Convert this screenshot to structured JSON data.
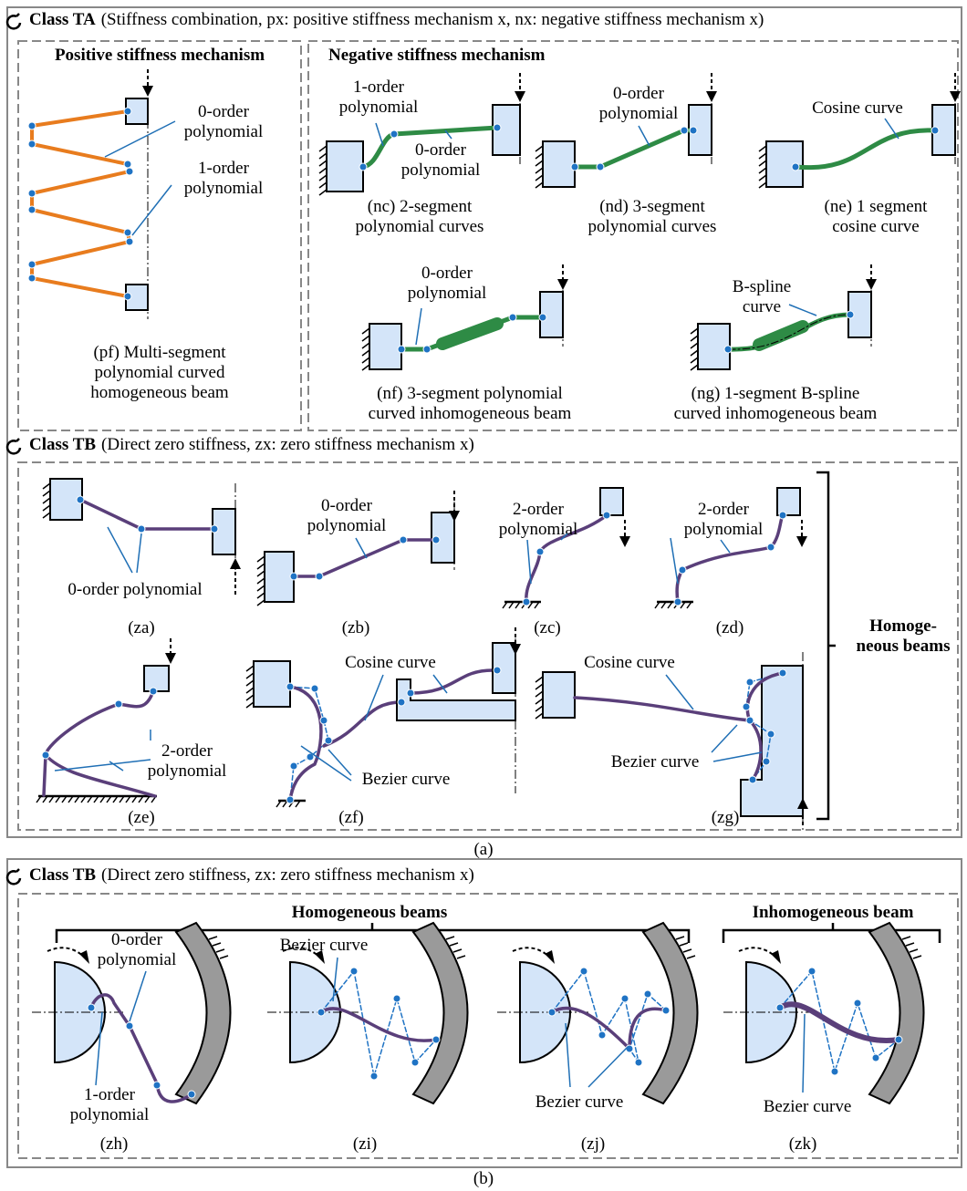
{
  "figure_a": {
    "class_ta": {
      "label": "Class TA",
      "description": "(Stiffness combination, px: positive stiffness mechanism x, nx: negative stiffness mechanism x)"
    },
    "positive": {
      "title": "Positive stiffness mechanism",
      "labels": [
        [
          "0-order",
          "polynomial"
        ],
        [
          "1-order",
          "polynomial"
        ]
      ],
      "caption": [
        "(pf) Multi-segment",
        "polynomial curved",
        "homogeneous beam"
      ]
    },
    "negative": {
      "title": "Negative stiffness mechanism",
      "items": [
        {
          "labels": [
            [
              "1-order",
              "polynomial"
            ],
            [
              "0-order",
              "polynomial"
            ]
          ],
          "caption": [
            "(nc) 2-segment",
            "polynomial curves"
          ]
        },
        {
          "labels": [
            [
              "0-order",
              "polynomial"
            ]
          ],
          "caption": [
            "(nd)  3-segment",
            "polynomial curves"
          ]
        },
        {
          "labels": [
            [
              "Cosine curve"
            ]
          ],
          "caption": [
            "(ne) 1 segment",
            "cosine curve"
          ]
        },
        {
          "labels": [
            [
              "0-order",
              "polynomial"
            ]
          ],
          "caption": [
            "(nf) 3-segment polynomial",
            "curved inhomogeneous beam"
          ]
        },
        {
          "labels": [
            [
              "B-spline",
              "curve"
            ]
          ],
          "caption": [
            "(ng) 1-segment B-spline",
            "curved inhomogeneous beam"
          ]
        }
      ]
    },
    "class_tb": {
      "label": "Class TB",
      "description": "(Direct zero stiffness, zx: zero stiffness mechanism x)"
    },
    "zero": {
      "items": [
        {
          "labels": [
            [
              "0-order polynomial"
            ]
          ],
          "caption": "(za)"
        },
        {
          "labels": [
            [
              "0-order",
              "polynomial"
            ]
          ],
          "caption": "(zb)"
        },
        {
          "labels": [
            [
              "2-order",
              "polynomial"
            ]
          ],
          "caption": "(zc)"
        },
        {
          "labels": [
            [
              "2-order",
              "polynomial"
            ]
          ],
          "caption": "(zd)"
        },
        {
          "labels": [
            [
              "2-order",
              "polynomial"
            ]
          ],
          "caption": "(ze)"
        },
        {
          "labels": [
            [
              "Cosine curve"
            ],
            [
              "Bezier curve"
            ]
          ],
          "caption": "(zf)"
        },
        {
          "labels": [
            [
              "Cosine curve"
            ],
            [
              "Bezier curve"
            ]
          ],
          "caption": "(zg)"
        }
      ],
      "group_label": [
        "Homoge-",
        "neous beams"
      ]
    },
    "caption": "(a)"
  },
  "figure_b": {
    "class_tb": {
      "label": "Class TB",
      "description": "(Direct zero stiffness, zx: zero stiffness mechanism x)"
    },
    "groups": [
      "Homogeneous beams",
      "Inhomogeneous beam"
    ],
    "items": [
      {
        "labels": [
          [
            "0-order",
            "polynomial"
          ],
          [
            "1-order",
            "polynomial"
          ]
        ],
        "caption": "(zh)"
      },
      {
        "labels": [
          [
            "Bezier curve"
          ]
        ],
        "caption": "(zi)"
      },
      {
        "labels": [
          [
            "Bezier curve"
          ]
        ],
        "caption": "(zj)"
      },
      {
        "labels": [
          [
            "Bezier curve"
          ]
        ],
        "caption": "(zk)"
      }
    ],
    "caption": "(b)"
  }
}
